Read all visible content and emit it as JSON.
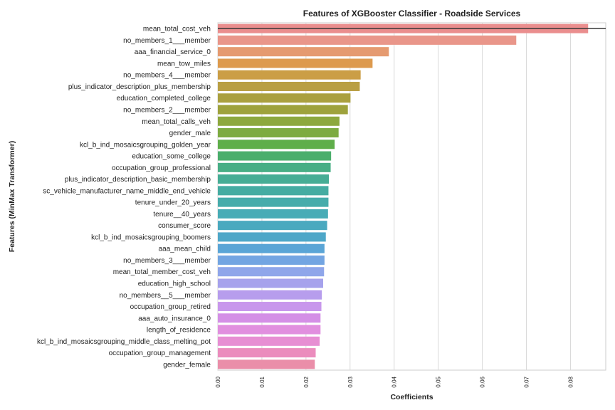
{
  "chart_data": {
    "type": "bar",
    "orientation": "horizontal",
    "title": "Features of XGBooster Classifier - Roadside Services",
    "xlabel": "Coefficients",
    "ylabel": "Features (MinMax Transformer)",
    "xlim": [
      0,
      0.088
    ],
    "xticks": [
      "0.00",
      "0.01",
      "0.02",
      "0.03",
      "0.04",
      "0.05",
      "0.06",
      "0.07",
      "0.08"
    ],
    "grid": "vertical",
    "reference_line": 0.084,
    "categories": [
      "mean_total_cost_veh",
      "no_members_1___member",
      "aaa_financial_service_0",
      "mean_tow_miles",
      "no_members_4___member",
      "plus_indicator_description_plus_membership",
      "education_completed_college",
      "no_members_2___member",
      "mean_total_calls_veh",
      "gender_male",
      "kcl_b_ind_mosaicsgrouping_golden_year",
      "education_some_college",
      "occupation_group_professional",
      "plus_indicator_description_basic_membership",
      "sc_vehicle_manufacturer_name_middle_end_vehicle",
      "tenure_under_20_years",
      "tenure__40_years",
      "consumer_score",
      "kcl_b_ind_mosaicsgrouping_boomers",
      "aaa_mean_child",
      "no_members_3___member",
      "mean_total_member_cost_veh",
      "education_high_school",
      "no_members__5___member",
      "occupation_group_retired",
      "aaa_auto_insurance_0",
      "length_of_residence",
      "kcl_b_ind_mosaicsgrouping_middle_class_melting_pot",
      "occupation_group_management",
      "gender_female"
    ],
    "values": [
      0.084,
      0.0677,
      0.0388,
      0.0351,
      0.0324,
      0.0322,
      0.0301,
      0.0295,
      0.0276,
      0.0274,
      0.0265,
      0.0257,
      0.0256,
      0.0252,
      0.0251,
      0.0251,
      0.025,
      0.0248,
      0.0245,
      0.0242,
      0.0242,
      0.0241,
      0.0239,
      0.0236,
      0.0235,
      0.0233,
      0.0233,
      0.0231,
      0.0222,
      0.022
    ],
    "colors": [
      "#ea8e8e",
      "#e9968a",
      "#e59a70",
      "#dd9a4e",
      "#cb9e46",
      "#b99f43",
      "#aaa03f",
      "#9ea23c",
      "#8da83e",
      "#7dab41",
      "#5fae4a",
      "#4aae6c",
      "#47ae85",
      "#46ad95",
      "#45aca2",
      "#46acab",
      "#48acb6",
      "#4aa9bf",
      "#4ea7c8",
      "#5aa5d6",
      "#73a5e2",
      "#8fa6ea",
      "#a6a2ec",
      "#b79ded",
      "#c897ec",
      "#d48fe6",
      "#e18fdf",
      "#e78ed3",
      "#eb8cbd",
      "#ea8ea9"
    ]
  }
}
